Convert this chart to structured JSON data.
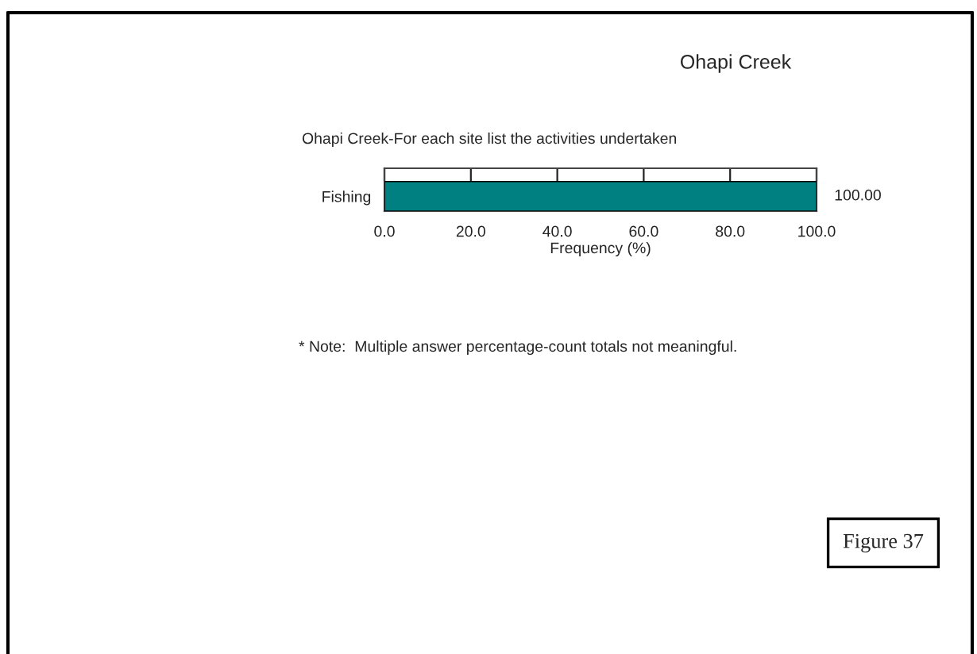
{
  "chart_data": {
    "type": "bar",
    "orientation": "horizontal",
    "title": "Ohapi Creek",
    "subtitle": "Ohapi Creek-For each site list the activities undertaken",
    "xlabel": "Frequency (%)",
    "categories": [
      "Fishing"
    ],
    "values": [
      100.0
    ],
    "color": "#008080",
    "value_labels": [
      "100.00"
    ],
    "xlim": [
      0,
      100
    ],
    "xticks": [
      {
        "value": 0,
        "label": "0.0"
      },
      {
        "value": 20,
        "label": "20.0"
      },
      {
        "value": 40,
        "label": "40.0"
      },
      {
        "value": 60,
        "label": "60.0"
      },
      {
        "value": 80,
        "label": "80.0"
      },
      {
        "value": 100,
        "label": "100.0"
      }
    ],
    "annotations": [
      "* Note:  Multiple answer percentage-count totals not meaningful.",
      "Figure 37"
    ]
  }
}
